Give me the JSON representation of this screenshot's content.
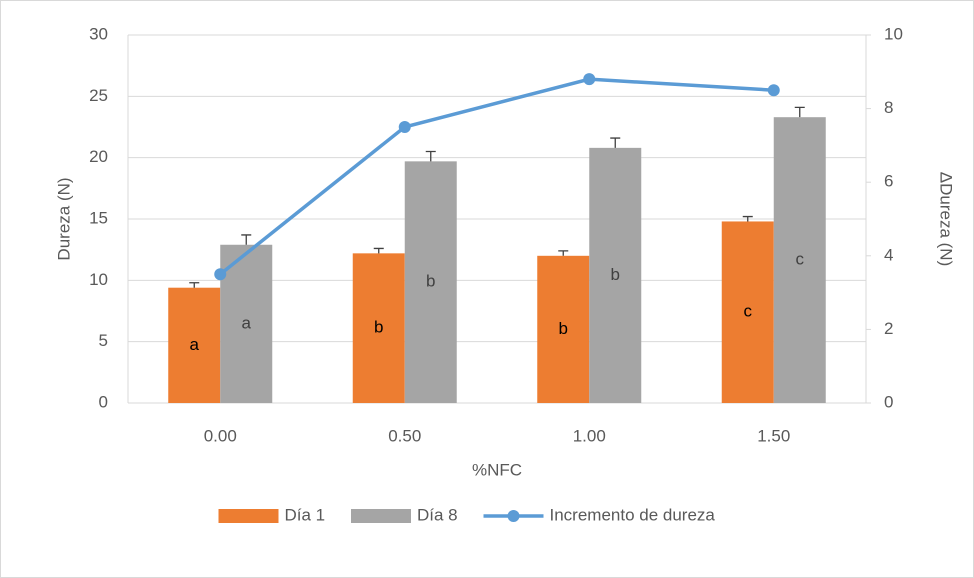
{
  "chart_data": {
    "type": "bar-line",
    "categories": [
      "0.00",
      "0.50",
      "1.00",
      "1.50"
    ],
    "xlabel": "%NFC",
    "ylabel": "Dureza (N)",
    "y2label": "ΔDureza (N)",
    "ylim": [
      0,
      30
    ],
    "yticks": [
      0,
      5,
      10,
      15,
      20,
      25,
      30
    ],
    "y2lim": [
      0,
      10
    ],
    "y2ticks": [
      0,
      2,
      4,
      6,
      8,
      10
    ],
    "grid": true,
    "legend": "bottom",
    "series": [
      {
        "name": "Día 1",
        "type": "bar",
        "color": "#ED7D31",
        "values": [
          9.4,
          12.2,
          12.0,
          14.8
        ],
        "errors": [
          0.4,
          0.4,
          0.4,
          0.4
        ],
        "letters": [
          "a",
          "b",
          "b",
          "c"
        ]
      },
      {
        "name": "Día 8",
        "type": "bar",
        "color": "#A5A5A5",
        "values": [
          12.9,
          19.7,
          20.8,
          23.3
        ],
        "errors": [
          0.8,
          0.8,
          0.8,
          0.8
        ],
        "letters": [
          "a",
          "b",
          "b",
          "c"
        ]
      },
      {
        "name": "Incremento de dureza",
        "type": "line",
        "axis": "y2",
        "color": "#5B9BD5",
        "values": [
          3.5,
          7.5,
          8.8,
          8.5
        ]
      }
    ]
  }
}
